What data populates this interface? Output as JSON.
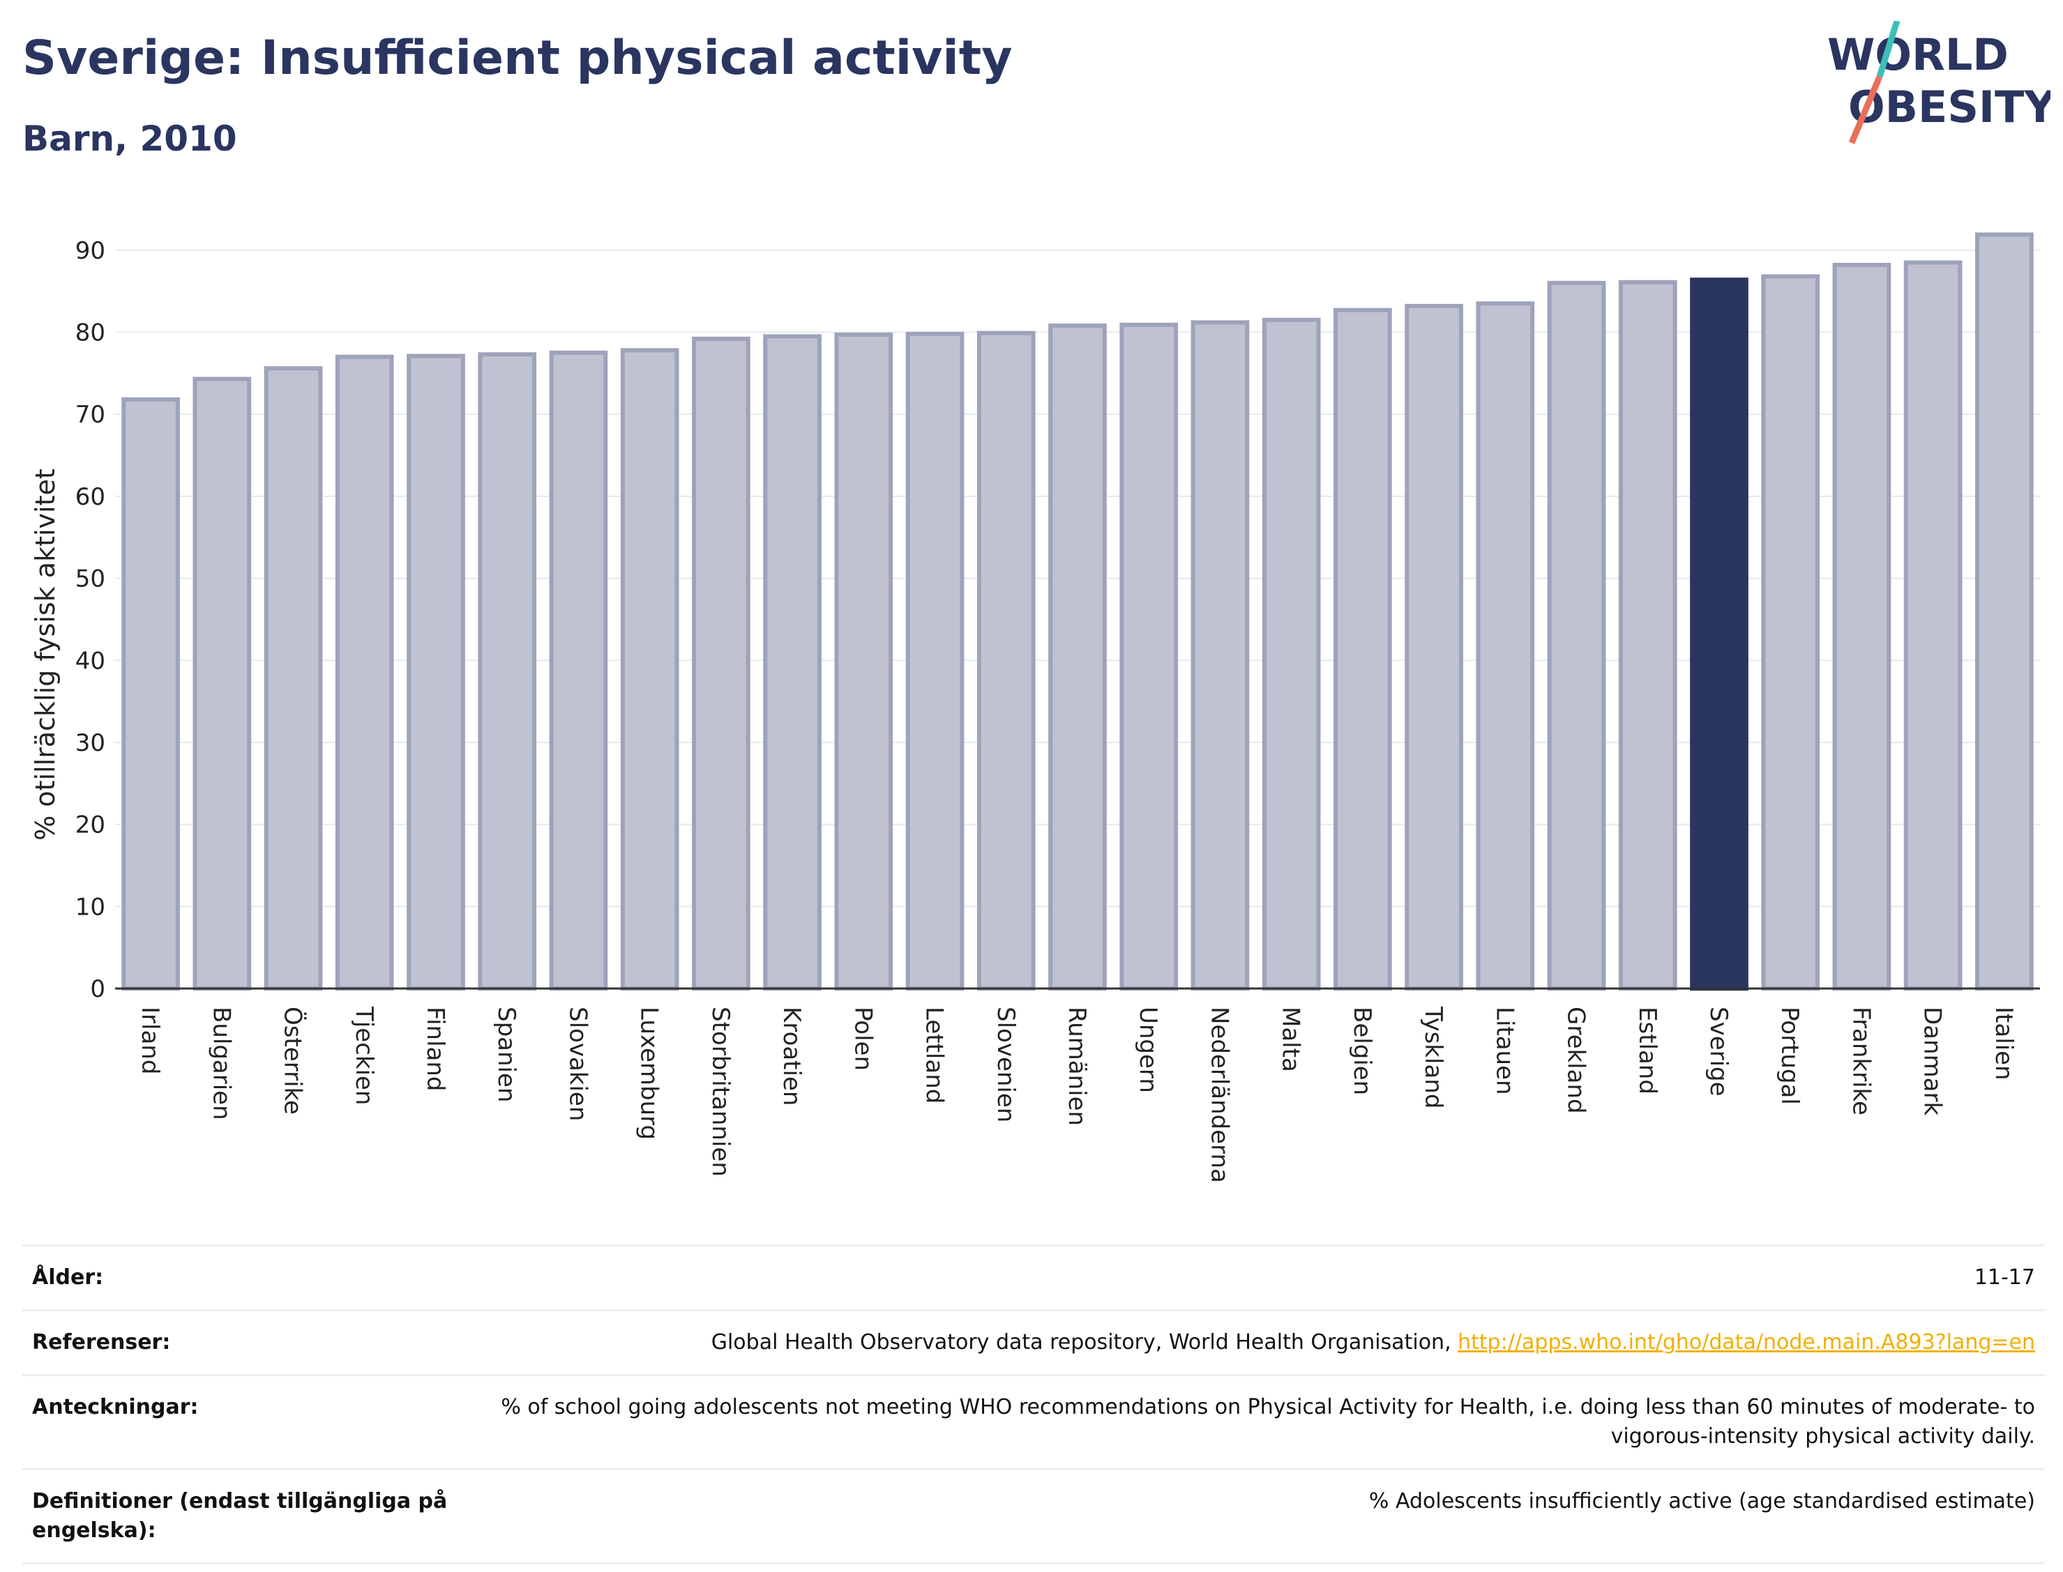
{
  "header": {
    "title": "Sverige: Insufficient physical activity",
    "subtitle": "Barn, 2010"
  },
  "logo": {
    "line1": "WORLD",
    "line2": "OBESITY",
    "accent_color": "#e8705a",
    "accent_color2": "#3bbfb8"
  },
  "colors": {
    "bar": "#bfc2d0",
    "bar_border": "#9ea3bb",
    "highlight": "#2a3560"
  },
  "chart_data": {
    "type": "bar",
    "title": "Sverige: Insufficient physical activity",
    "subtitle": "Barn, 2010",
    "ylabel": "% otillräcklig fysisk aktivitet",
    "xlabel": "",
    "ylim": [
      0,
      95
    ],
    "yticks": [
      0,
      10,
      20,
      30,
      40,
      50,
      60,
      70,
      80,
      90
    ],
    "grid": true,
    "highlight": "Sverige",
    "categories": [
      "Irland",
      "Bulgarien",
      "Österrike",
      "Tjeckien",
      "Finland",
      "Spanien",
      "Slovakien",
      "Luxemburg",
      "Storbritannien",
      "Kroatien",
      "Polen",
      "Lettland",
      "Slovenien",
      "Rumänien",
      "Ungern",
      "Nederländerna",
      "Malta",
      "Belgien",
      "Tyskland",
      "Litauen",
      "Grekland",
      "Estland",
      "Sverige",
      "Portugal",
      "Frankrike",
      "Danmark",
      "Italien"
    ],
    "values": [
      71.8,
      74.3,
      75.6,
      77.0,
      77.1,
      77.3,
      77.5,
      77.8,
      79.2,
      79.5,
      79.7,
      79.8,
      79.9,
      80.8,
      80.9,
      81.2,
      81.5,
      82.7,
      83.2,
      83.5,
      86.0,
      86.1,
      86.4,
      86.8,
      88.2,
      88.5,
      91.9
    ]
  },
  "info": [
    {
      "key": "Ålder:",
      "value": "11-17"
    },
    {
      "key": "Referenser:",
      "value": "Global Health Observatory data repository, World Health Organisation, ",
      "link": "http://apps.who.int/gho/data/node.main.A893?lang=en"
    },
    {
      "key": "Anteckningar:",
      "value": "% of school going adolescents not meeting WHO recommendations on Physical Activity for Health, i.e. doing less than 60 minutes of moderate- to vigorous-intensity physical activity daily."
    },
    {
      "key": "Definitioner (endast tillgängliga på engelska):",
      "value": "% Adolescents insufficiently active (age standardised estimate)"
    }
  ]
}
